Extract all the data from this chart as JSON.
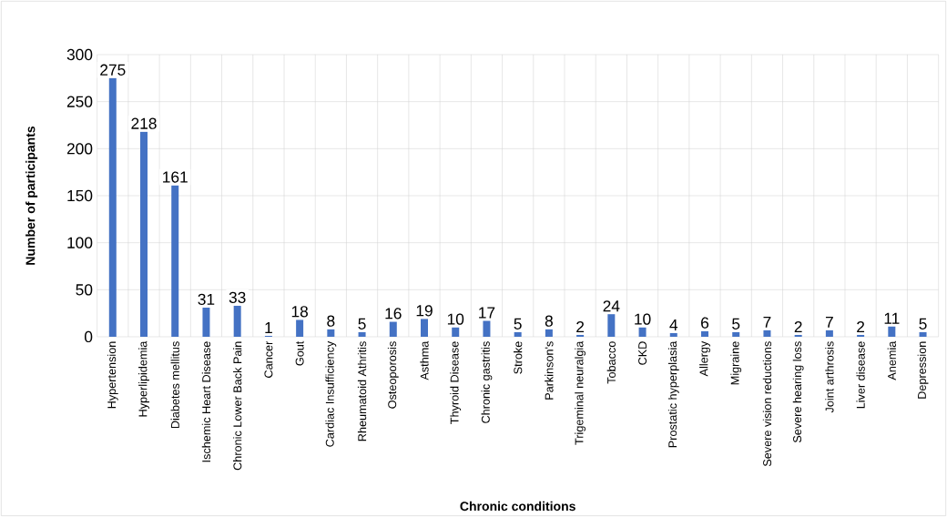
{
  "chart_data": {
    "type": "bar",
    "xlabel": "Chronic conditions",
    "ylabel": "Number of participants",
    "categories": [
      "Hypertension",
      "Hyperlipidemia",
      "Diabetes mellitus",
      "Ischemic Heart Disease",
      "Chronic Lower Back Pain",
      "Cancer",
      "Gout",
      "Cardiac Insufficiency",
      "Rheumatoid Athritis",
      "Osteoporosis",
      "Asthma",
      "Thyroid Disease",
      "Chronic gastritis",
      "Stroke",
      "Parkinson's",
      "Trigeminal neuralgia",
      "Tobacco",
      "CKD",
      "Prostatic hyperplasia",
      "Allergy",
      "Migraine",
      "Severe vision reductions",
      "Severe hearing loss",
      "Joint arthrosis",
      "Liver disease",
      "Anemia",
      "Depression"
    ],
    "values": [
      275,
      218,
      161,
      31,
      33,
      1,
      18,
      8,
      5,
      16,
      19,
      10,
      17,
      5,
      8,
      2,
      24,
      10,
      4,
      6,
      5,
      7,
      2,
      7,
      2,
      11,
      5
    ],
    "color": "#4472c4",
    "ylim": [
      0,
      300
    ],
    "yticks": [
      0,
      50,
      100,
      150,
      200,
      250,
      300
    ],
    "grid": true,
    "data_labels": true
  }
}
